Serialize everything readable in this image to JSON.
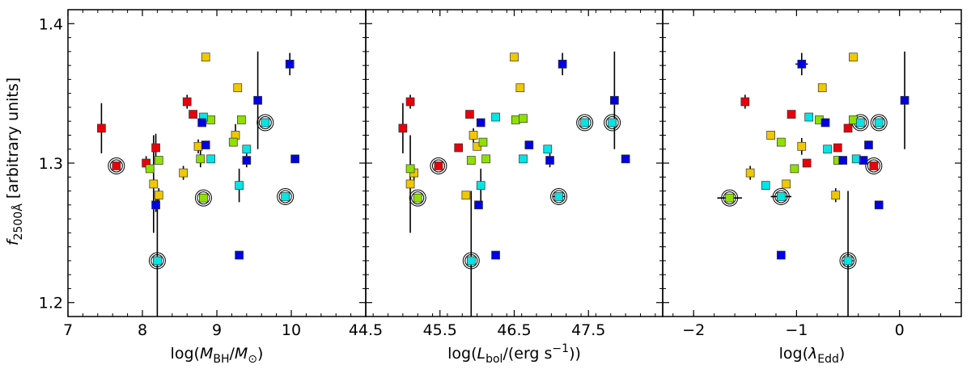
{
  "chart_data": {
    "type": "scatter",
    "ylabel": "f_2500Å [arbitrary units]",
    "ylabel_main": "f",
    "ylabel_sub": "2500Å",
    "ylabel_rest": " [arbitrary units]",
    "ylim": [
      1.19,
      1.41
    ],
    "yticks": [
      1.2,
      1.3,
      1.4
    ],
    "ytick_labels": [
      "1.2",
      "1.3",
      "1.4"
    ],
    "marker": "square",
    "circled_note": "open circles around some points",
    "panels": [
      {
        "id": "mbh",
        "xlabel": "log(M_BH/M_⊙)",
        "xlabel_pre": "log(",
        "xlabel_var": "M",
        "xlabel_sub": "BH",
        "xlabel_mid": "/",
        "xlabel_var2": "M",
        "xlabel_sub2": "⊙",
        "xlabel_post": ")",
        "xlim": [
          7.0,
          11.0
        ],
        "xticks": [
          7,
          8,
          9,
          10
        ],
        "xtick_labels": [
          "7",
          "8",
          "9",
          "10"
        ],
        "points": [
          {
            "x": 7.45,
            "y": 1.325,
            "color": "#e8000b",
            "yerr": 0.018
          },
          {
            "x": 7.65,
            "y": 1.298,
            "color": "#e8000b",
            "circled": true
          },
          {
            "x": 8.05,
            "y": 1.3,
            "color": "#e8000b",
            "yerr": 0.005
          },
          {
            "x": 8.18,
            "y": 1.311,
            "color": "#e8000b",
            "yerr": 0.01
          },
          {
            "x": 8.6,
            "y": 1.344,
            "color": "#e8000b",
            "yerr": 0.005
          },
          {
            "x": 8.68,
            "y": 1.335,
            "color": "#e8000b"
          },
          {
            "x": 8.85,
            "y": 1.376,
            "color": "#f0c800"
          },
          {
            "x": 8.15,
            "y": 1.285,
            "color": "#f0c800",
            "yerr": 0.035
          },
          {
            "x": 8.22,
            "y": 1.277,
            "color": "#f0c800",
            "yerr": 0.005
          },
          {
            "x": 8.55,
            "y": 1.293,
            "color": "#f0c800",
            "yerr": 0.005
          },
          {
            "x": 8.75,
            "y": 1.312,
            "color": "#f0c800",
            "yerr": 0.005
          },
          {
            "x": 9.25,
            "y": 1.32,
            "color": "#f0c800",
            "yerr": 0.008
          },
          {
            "x": 9.28,
            "y": 1.354,
            "color": "#f0c800"
          },
          {
            "x": 8.1,
            "y": 1.296,
            "color": "#8fe000"
          },
          {
            "x": 8.22,
            "y": 1.302,
            "color": "#8fe000"
          },
          {
            "x": 8.78,
            "y": 1.303,
            "color": "#8fe000",
            "yerr": 0.006
          },
          {
            "x": 8.82,
            "y": 1.275,
            "color": "#8fe000",
            "circled": true
          },
          {
            "x": 8.92,
            "y": 1.331,
            "color": "#8fe000"
          },
          {
            "x": 9.22,
            "y": 1.315,
            "color": "#8fe000"
          },
          {
            "x": 9.33,
            "y": 1.331,
            "color": "#8fe000"
          },
          {
            "x": 8.82,
            "y": 1.333,
            "color": "#00e5e5"
          },
          {
            "x": 8.92,
            "y": 1.303,
            "color": "#00e5e5"
          },
          {
            "x": 8.2,
            "y": 1.23,
            "color": "#00e5e5",
            "circled": true,
            "yerr": 0.05
          },
          {
            "x": 9.3,
            "y": 1.284,
            "color": "#00e5e5",
            "yerr": 0.012
          },
          {
            "x": 9.4,
            "y": 1.31,
            "color": "#00e5e5"
          },
          {
            "x": 9.65,
            "y": 1.329,
            "color": "#00e5e5",
            "circled": true
          },
          {
            "x": 9.92,
            "y": 1.276,
            "color": "#00e5e5",
            "circled": true
          },
          {
            "x": 8.18,
            "y": 1.27,
            "color": "#0000e5",
            "yerr": 0.005
          },
          {
            "x": 8.8,
            "y": 1.329,
            "color": "#0000e5"
          },
          {
            "x": 8.85,
            "y": 1.313,
            "color": "#0000e5"
          },
          {
            "x": 9.3,
            "y": 1.234,
            "color": "#0000e5"
          },
          {
            "x": 9.4,
            "y": 1.302,
            "color": "#0000e5",
            "yerr": 0.005
          },
          {
            "x": 9.55,
            "y": 1.345,
            "color": "#0000e5",
            "yerr": 0.035
          },
          {
            "x": 9.98,
            "y": 1.371,
            "color": "#0000e5",
            "yerr": 0.008
          },
          {
            "x": 10.05,
            "y": 1.303,
            "color": "#0000e5"
          }
        ]
      },
      {
        "id": "lbol",
        "xlabel": "log(L_bol/(erg s⁻¹))",
        "xlabel_pre": "log(",
        "xlabel_var": "L",
        "xlabel_sub": "bol",
        "xlabel_post": "/(erg s",
        "xlabel_sup": "−1",
        "xlabel_end": "))",
        "xlim": [
          44.5,
          48.5
        ],
        "xticks": [
          44.5,
          45.5,
          46.5,
          47.5
        ],
        "xtick_labels": [
          "44.5",
          "45.5",
          "46.5",
          "47.5"
        ],
        "points": [
          {
            "x": 45.0,
            "y": 1.325,
            "color": "#e8000b",
            "yerr": 0.018
          },
          {
            "x": 45.48,
            "y": 1.298,
            "color": "#e8000b",
            "circled": true
          },
          {
            "x": 45.1,
            "y": 1.344,
            "color": "#e8000b",
            "yerr": 0.005
          },
          {
            "x": 45.75,
            "y": 1.311,
            "color": "#e8000b"
          },
          {
            "x": 45.9,
            "y": 1.335,
            "color": "#e8000b"
          },
          {
            "x": 46.05,
            "y": 1.329,
            "color": "#0000e5"
          },
          {
            "x": 46.5,
            "y": 1.376,
            "color": "#f0c800"
          },
          {
            "x": 46.58,
            "y": 1.354,
            "color": "#f0c800"
          },
          {
            "x": 45.15,
            "y": 1.293,
            "color": "#f0c800",
            "yerr": 0.006
          },
          {
            "x": 45.1,
            "y": 1.285,
            "color": "#f0c800",
            "yerr": 0.035
          },
          {
            "x": 45.85,
            "y": 1.277,
            "color": "#f0c800"
          },
          {
            "x": 45.95,
            "y": 1.32,
            "color": "#f0c800",
            "yerr": 0.005
          },
          {
            "x": 46.0,
            "y": 1.312,
            "color": "#f0c800"
          },
          {
            "x": 45.1,
            "y": 1.296,
            "color": "#8fe000"
          },
          {
            "x": 45.2,
            "y": 1.275,
            "color": "#8fe000",
            "circled": true
          },
          {
            "x": 45.92,
            "y": 1.302,
            "color": "#8fe000"
          },
          {
            "x": 46.12,
            "y": 1.303,
            "color": "#8fe000"
          },
          {
            "x": 46.08,
            "y": 1.315,
            "color": "#8fe000"
          },
          {
            "x": 46.52,
            "y": 1.331,
            "color": "#8fe000"
          },
          {
            "x": 46.62,
            "y": 1.332,
            "color": "#8fe000"
          },
          {
            "x": 46.25,
            "y": 1.333,
            "color": "#00e5e5"
          },
          {
            "x": 46.05,
            "y": 1.284,
            "color": "#00e5e5",
            "yerr": 0.012
          },
          {
            "x": 45.92,
            "y": 1.23,
            "color": "#00e5e5",
            "circled": true,
            "yerr": 0.05
          },
          {
            "x": 46.62,
            "y": 1.303,
            "color": "#00e5e5"
          },
          {
            "x": 46.95,
            "y": 1.31,
            "color": "#00e5e5"
          },
          {
            "x": 47.1,
            "y": 1.276,
            "color": "#00e5e5",
            "circled": true,
            "xerr": 0.08
          },
          {
            "x": 47.45,
            "y": 1.329,
            "color": "#00e5e5",
            "circled": true
          },
          {
            "x": 47.82,
            "y": 1.329,
            "color": "#00e5e5",
            "circled": true
          },
          {
            "x": 46.02,
            "y": 1.27,
            "color": "#0000e5"
          },
          {
            "x": 46.25,
            "y": 1.234,
            "color": "#0000e5"
          },
          {
            "x": 46.7,
            "y": 1.313,
            "color": "#0000e5"
          },
          {
            "x": 46.98,
            "y": 1.302,
            "color": "#0000e5",
            "yerr": 0.005
          },
          {
            "x": 47.15,
            "y": 1.371,
            "color": "#0000e5",
            "yerr": 0.008
          },
          {
            "x": 47.85,
            "y": 1.345,
            "color": "#0000e5",
            "yerr": 0.035
          },
          {
            "x": 48.0,
            "y": 1.303,
            "color": "#0000e5"
          }
        ]
      },
      {
        "id": "edd",
        "xlabel": "log(λ_Edd)",
        "xlabel_pre": "log(",
        "xlabel_var": "λ",
        "xlabel_sub": "Edd",
        "xlabel_post": ")",
        "xlim": [
          -2.3,
          0.6
        ],
        "xticks": [
          -2,
          -1,
          0
        ],
        "xtick_labels": [
          "−2",
          "−1",
          "0"
        ],
        "points": [
          {
            "x": -1.5,
            "y": 1.344,
            "color": "#e8000b",
            "yerr": 0.005
          },
          {
            "x": -1.05,
            "y": 1.335,
            "color": "#e8000b"
          },
          {
            "x": -0.9,
            "y": 1.3,
            "color": "#e8000b"
          },
          {
            "x": -0.6,
            "y": 1.311,
            "color": "#e8000b"
          },
          {
            "x": -0.5,
            "y": 1.325,
            "color": "#e8000b"
          },
          {
            "x": -0.25,
            "y": 1.298,
            "color": "#e8000b",
            "circled": true
          },
          {
            "x": -0.45,
            "y": 1.376,
            "color": "#f0c800"
          },
          {
            "x": -0.75,
            "y": 1.354,
            "color": "#f0c800"
          },
          {
            "x": -1.25,
            "y": 1.32,
            "color": "#f0c800"
          },
          {
            "x": -0.95,
            "y": 1.312,
            "color": "#f0c800",
            "yerr": 0.006
          },
          {
            "x": -1.45,
            "y": 1.293,
            "color": "#f0c800",
            "yerr": 0.005
          },
          {
            "x": -1.1,
            "y": 1.285,
            "color": "#f0c800"
          },
          {
            "x": -0.62,
            "y": 1.277,
            "color": "#f0c800",
            "yerr": 0.005
          },
          {
            "x": -1.15,
            "y": 1.315,
            "color": "#8fe000"
          },
          {
            "x": -1.02,
            "y": 1.296,
            "color": "#8fe000"
          },
          {
            "x": -0.78,
            "y": 1.331,
            "color": "#8fe000"
          },
          {
            "x": -0.6,
            "y": 1.302,
            "color": "#8fe000"
          },
          {
            "x": -0.45,
            "y": 1.331,
            "color": "#8fe000"
          },
          {
            "x": -1.65,
            "y": 1.275,
            "color": "#8fe000",
            "circled": true,
            "xerr": 0.12
          },
          {
            "x": -0.88,
            "y": 1.333,
            "color": "#00e5e5"
          },
          {
            "x": -1.3,
            "y": 1.284,
            "color": "#00e5e5"
          },
          {
            "x": -1.15,
            "y": 1.276,
            "color": "#00e5e5",
            "circled": true,
            "xerr": 0.1
          },
          {
            "x": -0.7,
            "y": 1.31,
            "color": "#00e5e5"
          },
          {
            "x": -0.42,
            "y": 1.303,
            "color": "#00e5e5"
          },
          {
            "x": -0.38,
            "y": 1.329,
            "color": "#00e5e5",
            "circled": true
          },
          {
            "x": -0.2,
            "y": 1.329,
            "color": "#00e5e5",
            "circled": true
          },
          {
            "x": -0.5,
            "y": 1.23,
            "color": "#00e5e5",
            "circled": true,
            "yerr": 0.05,
            "xerr": 0.05
          },
          {
            "x": -0.95,
            "y": 1.371,
            "color": "#0000e5",
            "yerr": 0.008,
            "xerr": 0.06
          },
          {
            "x": -0.72,
            "y": 1.329,
            "color": "#0000e5"
          },
          {
            "x": -1.15,
            "y": 1.234,
            "color": "#0000e5"
          },
          {
            "x": -0.55,
            "y": 1.302,
            "color": "#0000e5"
          },
          {
            "x": -0.35,
            "y": 1.302,
            "color": "#0000e5"
          },
          {
            "x": -0.3,
            "y": 1.313,
            "color": "#0000e5"
          },
          {
            "x": -0.2,
            "y": 1.27,
            "color": "#0000e5"
          },
          {
            "x": 0.05,
            "y": 1.345,
            "color": "#0000e5",
            "yerr": 0.035
          }
        ]
      }
    ]
  }
}
